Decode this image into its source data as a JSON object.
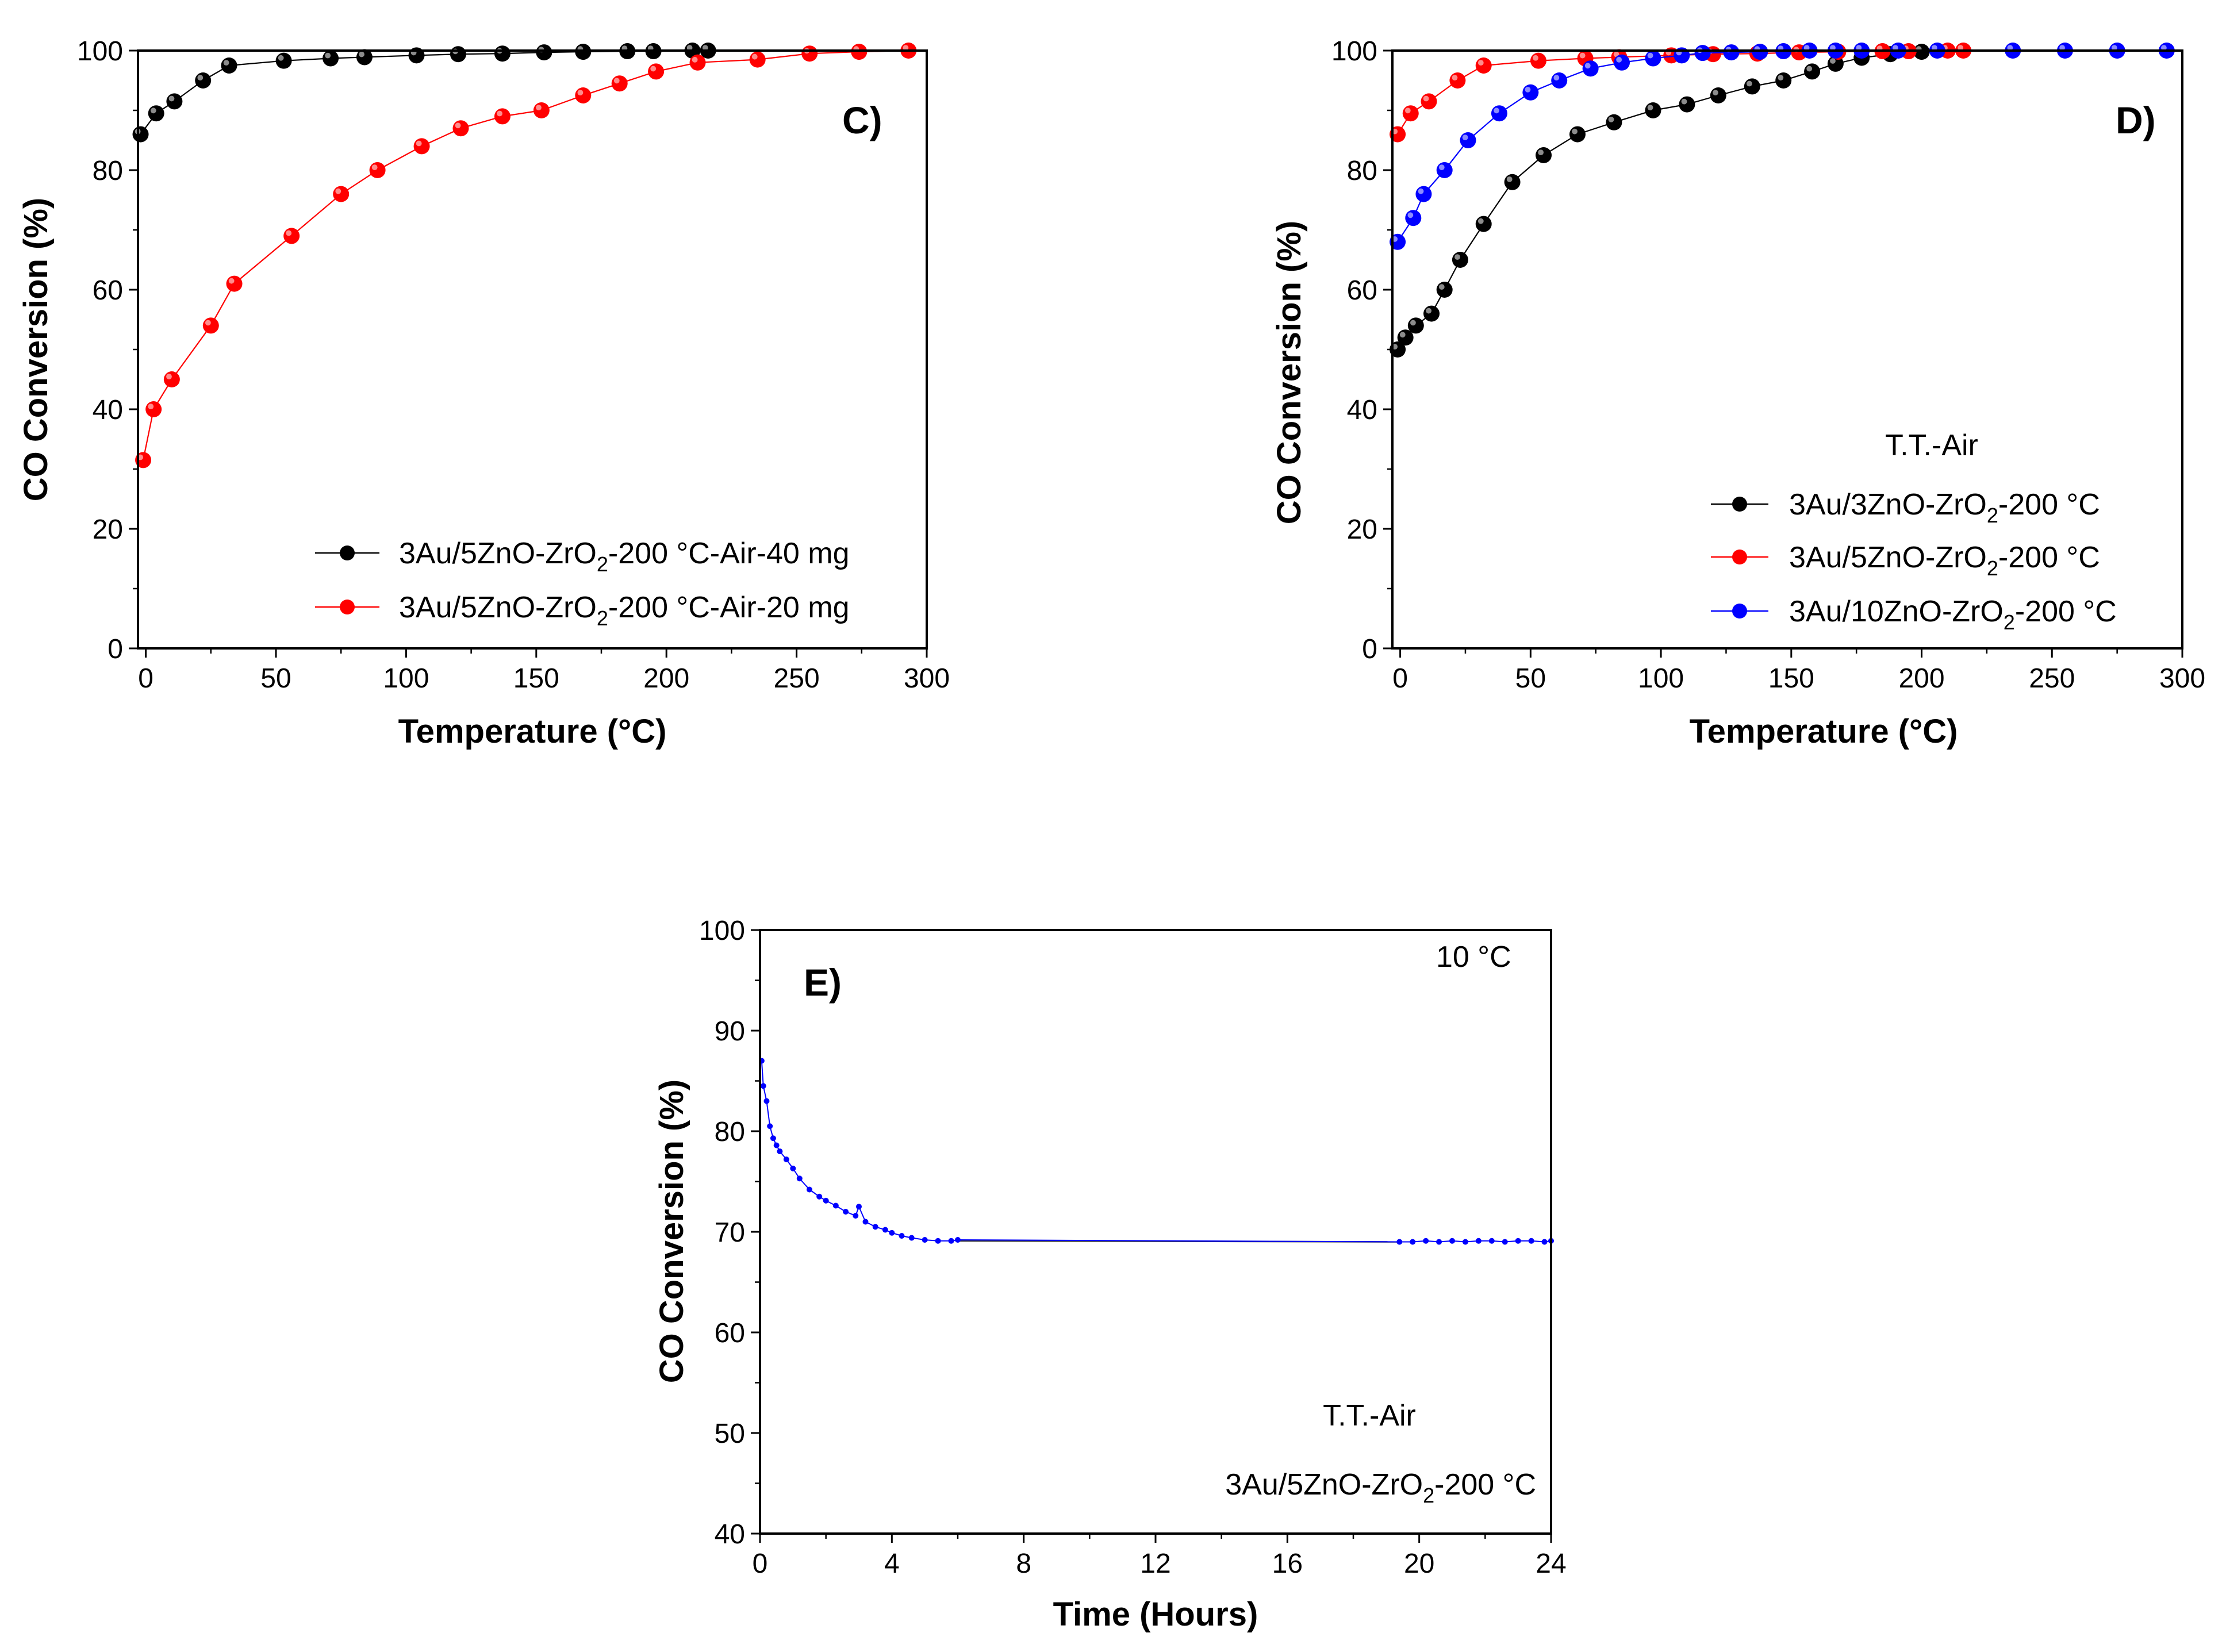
{
  "chart_data": [
    {
      "panel": "C)",
      "type": "line",
      "xlabel": "Temperature (°C)",
      "ylabel": "CO  Conversion (%)",
      "xlim": [
        -3,
        300
      ],
      "ylim": [
        0,
        100
      ],
      "xticks": [
        0,
        50,
        100,
        150,
        200,
        250,
        300
      ],
      "yticks": [
        0,
        20,
        40,
        60,
        80,
        100
      ],
      "legend": "bottom-right",
      "series": [
        {
          "name": "3Au/5ZnO-ZrO2-200 °C-Air-40 mg",
          "label_main": "3Au/5ZnO-ZrO",
          "label_sub": "2",
          "label_tail": "-200 °C-Air-40 mg",
          "color": "#000000",
          "x": [
            -2,
            4,
            11,
            22,
            32,
            53,
            71,
            84,
            104,
            120,
            137,
            153,
            168,
            185,
            195,
            210,
            216
          ],
          "y": [
            86,
            89.5,
            91.5,
            95,
            97.5,
            98.3,
            98.7,
            98.9,
            99.2,
            99.4,
            99.5,
            99.7,
            99.8,
            99.9,
            99.9,
            100,
            100
          ]
        },
        {
          "name": "3Au/5ZnO-ZrO2-200 °C-Air-20 mg",
          "label_main": "3Au/5ZnO-ZrO",
          "label_sub": "2",
          "label_tail": "-200 °C-Air-20 mg",
          "color": "#ff0000",
          "x": [
            -1,
            3,
            10,
            25,
            34,
            56,
            75,
            89,
            106,
            121,
            137,
            152,
            168,
            182,
            196,
            212,
            235,
            255,
            274,
            293
          ],
          "y": [
            31.5,
            40,
            45,
            54,
            61,
            69,
            76,
            80,
            84,
            87,
            89,
            90,
            92.5,
            94.5,
            96.5,
            98,
            98.5,
            99.5,
            99.8,
            100
          ]
        }
      ]
    },
    {
      "panel": "D)",
      "type": "line",
      "xlabel": "Temperature (°C)",
      "ylabel": "CO  Conversion (%)",
      "xlim": [
        -3,
        300
      ],
      "ylim": [
        0,
        100
      ],
      "xticks": [
        0,
        50,
        100,
        150,
        200,
        250,
        300
      ],
      "yticks": [
        0,
        20,
        40,
        60,
        80,
        100
      ],
      "legend": "bottom-right",
      "legend_title": "T.T.-Air",
      "series": [
        {
          "name": "3Au/3ZnO-ZrO2-200 °C",
          "label_main": "3Au/3ZnO-ZrO",
          "label_sub": "2",
          "label_tail": "-200 °C",
          "color": "#000000",
          "x": [
            -1,
            2,
            6,
            12,
            17,
            23,
            32,
            43,
            55,
            68,
            82,
            97,
            110,
            122,
            135,
            147,
            158,
            167,
            177,
            188,
            200
          ],
          "y": [
            50,
            52,
            54,
            56,
            60,
            65,
            71,
            78,
            82.5,
            86,
            88,
            90,
            91,
            92.5,
            94,
            95,
            96.5,
            97.8,
            98.8,
            99.4,
            99.8
          ]
        },
        {
          "name": "3Au/5ZnO-ZrO2-200 °C",
          "label_main": "3Au/5ZnO-ZrO",
          "label_sub": "2",
          "label_tail": "-200 °C",
          "color": "#ff0000",
          "x": [
            -1,
            4,
            11,
            22,
            32,
            53,
            71,
            84,
            104,
            120,
            137,
            153,
            168,
            185,
            195,
            210,
            216
          ],
          "y": [
            86,
            89.5,
            91.5,
            95,
            97.5,
            98.3,
            98.7,
            98.9,
            99.2,
            99.4,
            99.5,
            99.7,
            99.8,
            99.9,
            99.9,
            100,
            100
          ]
        },
        {
          "name": "3Au/10ZnO-ZrO2-200 °C",
          "label_main": "3Au/10ZnO-ZrO",
          "label_sub": "2",
          "label_tail": "-200 °C",
          "color": "#0000ff",
          "x": [
            -1,
            5,
            9,
            17,
            26,
            38,
            50,
            61,
            73,
            85,
            97,
            108,
            116,
            127,
            138,
            147,
            157,
            167,
            177,
            191,
            206,
            235,
            255,
            275,
            294
          ],
          "y": [
            68,
            72,
            76,
            80,
            85,
            89.5,
            93,
            95,
            97,
            98,
            98.7,
            99.2,
            99.6,
            99.7,
            99.8,
            99.9,
            100,
            100,
            100,
            100,
            100,
            100,
            100,
            100,
            100
          ]
        }
      ]
    },
    {
      "panel": "E)",
      "type": "scatter",
      "xlabel": "Time (Hours)",
      "ylabel": "CO  Conversion (%)",
      "xlim": [
        0,
        24
      ],
      "ylim": [
        40,
        100
      ],
      "xticks": [
        0,
        4,
        8,
        12,
        16,
        20,
        24
      ],
      "yticks": [
        40,
        50,
        60,
        70,
        80,
        90,
        100
      ],
      "annotation_temp": "10 °C",
      "annotation_atm": "T.T.-Air",
      "annotation_sample_main": "3Au/5ZnO-ZrO",
      "annotation_sample_sub": "2",
      "annotation_sample_tail": "-200 °C",
      "series": [
        {
          "name": "3Au/5ZnO-ZrO2-200 °C",
          "color": "#0000ff",
          "x": [
            0.05,
            0.1,
            0.2,
            0.3,
            0.4,
            0.5,
            0.6,
            0.8,
            1.0,
            1.2,
            1.5,
            1.8,
            2.0,
            2.3,
            2.6,
            2.9,
            3.0,
            3.2,
            3.5,
            3.8,
            4.0,
            4.3,
            4.6,
            5.0,
            5.4,
            5.8,
            6.0,
            19.4,
            19.8,
            20.2,
            20.6,
            21.0,
            21.4,
            21.8,
            22.2,
            22.6,
            23.0,
            23.4,
            23.8,
            24.0
          ],
          "y": [
            87,
            84.5,
            83,
            80.5,
            79.3,
            78.6,
            78,
            77.2,
            76.3,
            75.3,
            74.2,
            73.5,
            73.1,
            72.6,
            72,
            71.6,
            72.5,
            71,
            70.5,
            70.2,
            69.9,
            69.6,
            69.4,
            69.2,
            69.1,
            69.1,
            69.2,
            69,
            69,
            69.1,
            69,
            69.1,
            69,
            69.1,
            69.1,
            69,
            69.1,
            69.1,
            69,
            69.1
          ]
        }
      ],
      "connector": {
        "x": [
          6,
          19.4
        ],
        "y": [
          69.1,
          69
        ]
      }
    }
  ]
}
